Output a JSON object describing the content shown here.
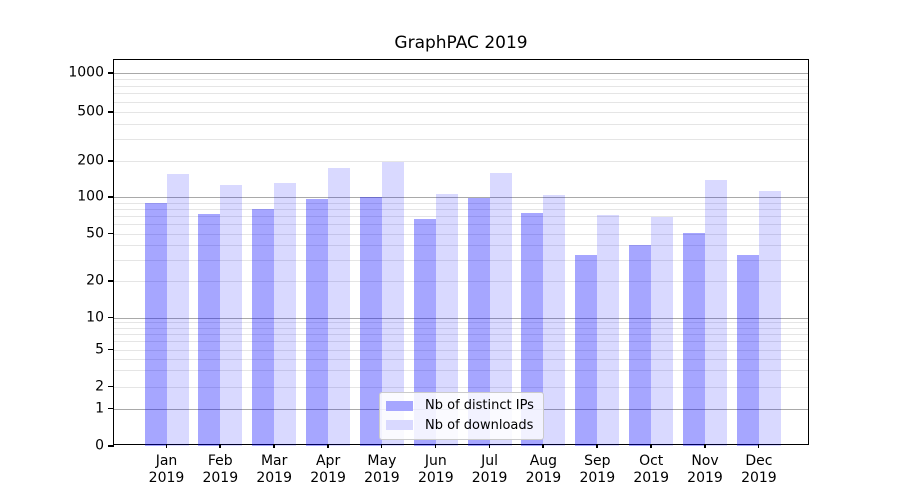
{
  "chart_data": {
    "type": "bar",
    "title": "GraphPAC 2019",
    "categories": [
      "Jan",
      "Feb",
      "Mar",
      "Apr",
      "May",
      "Jun",
      "Jul",
      "Aug",
      "Sep",
      "Oct",
      "Nov",
      "Dec"
    ],
    "category_year": "2019",
    "series": [
      {
        "name": "Nb of distinct IPs",
        "color": "rgba(0,0,255,0.35)",
        "legend_color": "#a6a6ff",
        "values": [
          90,
          72,
          80,
          97,
          101,
          66,
          98,
          74,
          33,
          40,
          51,
          33
        ]
      },
      {
        "name": "Nb of downloads",
        "color": "rgba(0,0,255,0.15)",
        "legend_color": "#d9d9ff",
        "values": [
          155,
          127,
          131,
          175,
          198,
          106,
          160,
          104,
          71,
          68,
          138,
          112
        ]
      }
    ],
    "xlabel": "",
    "ylabel": "",
    "yscale": "symlog",
    "yticks": [
      0,
      1,
      2,
      5,
      10,
      20,
      50,
      100,
      200,
      500,
      1000
    ],
    "ylim": [
      0,
      1400
    ],
    "grid": "both",
    "legend_position": "lower center"
  },
  "colors": {
    "background": "#ffffff",
    "axis_frame": "#000000",
    "grid_major": "#a9a9a9",
    "grid_minor": "#e5e5e5",
    "text": "#000000"
  }
}
